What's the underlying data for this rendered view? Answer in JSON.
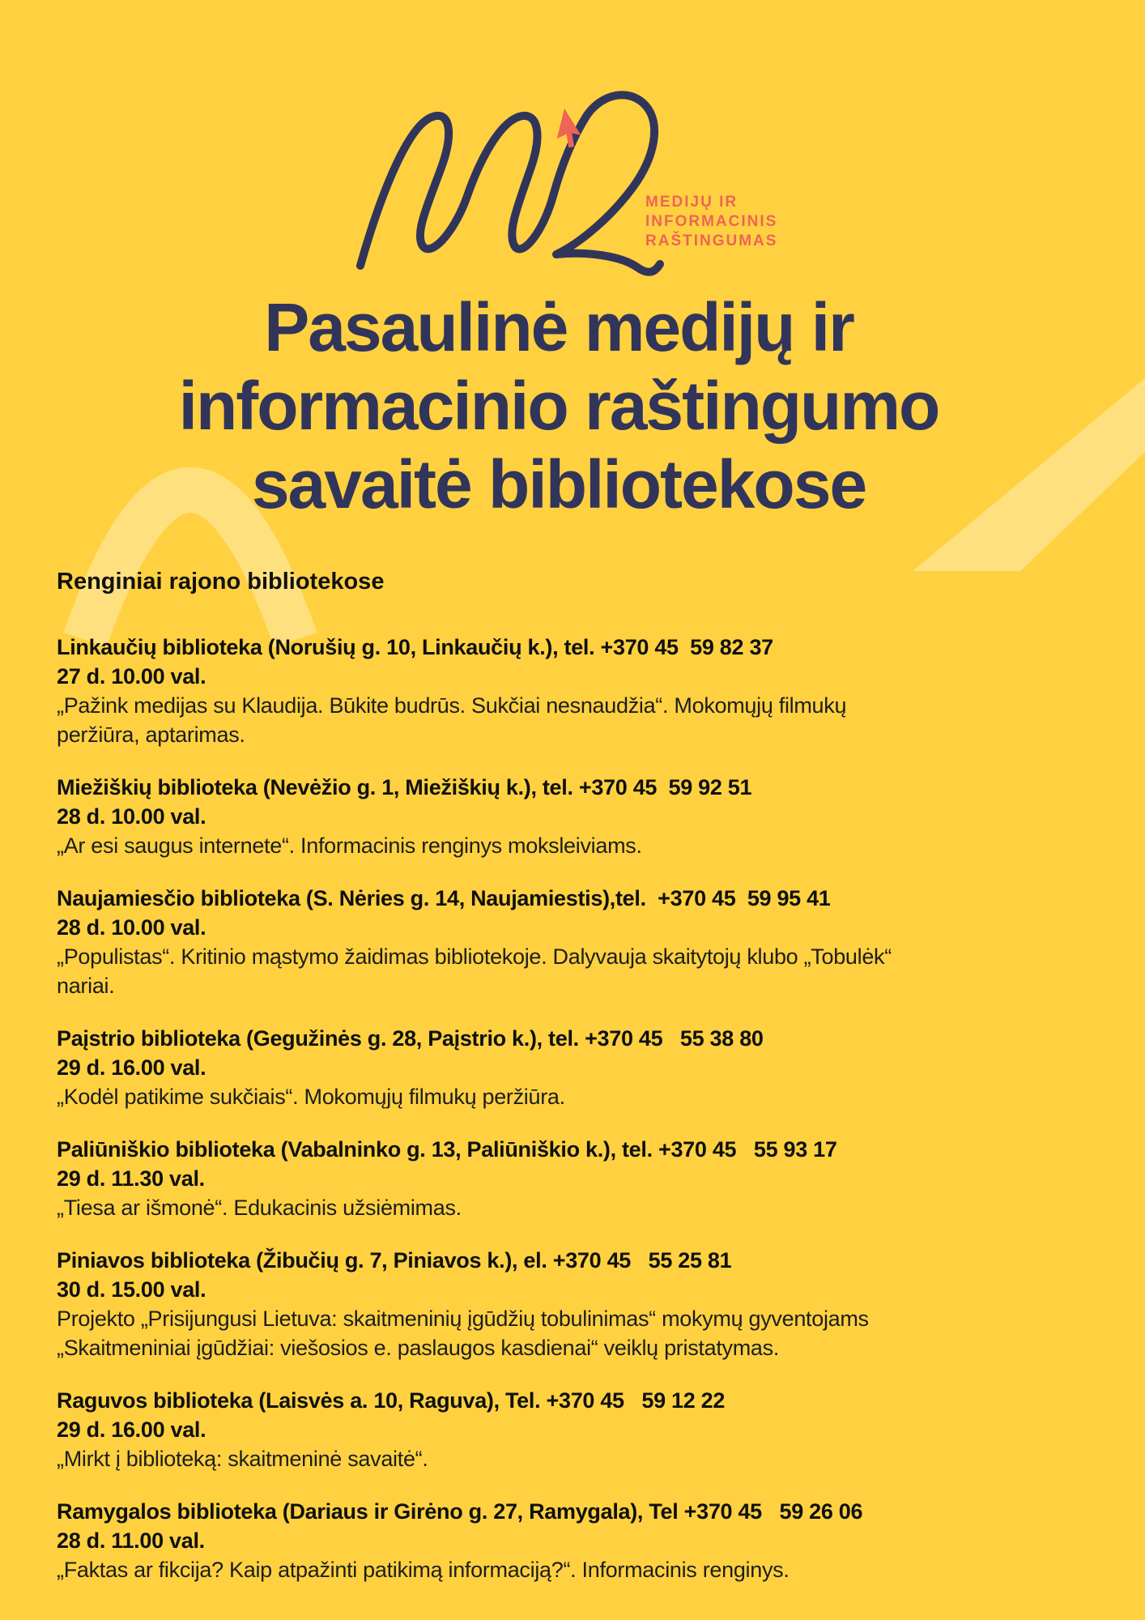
{
  "page": {
    "background_color": "#ffd140",
    "accent_navy": "#32355a",
    "accent_coral": "#ee6455",
    "swoosh_color": "rgba(255,255,255,0.33)"
  },
  "logo": {
    "monogram": "MR",
    "brand_lines": [
      "MEDIJŲ IR",
      "INFORMACINIS",
      "RAŠTINGUMAS"
    ]
  },
  "title": {
    "lines": [
      "Pasaulinė medijų ir",
      "informacinio raštingumo",
      "savaitė bibliotekose"
    ]
  },
  "section": {
    "heading": "Renginiai rajono bibliotekose"
  },
  "events": [
    {
      "bold_lines": [
        "Linkaučių biblioteka (Norušių g. 10, Linkaučių k.), tel. +370 45  59 82 37",
        "27 d. 10.00 val."
      ],
      "text_lines": [
        "„Pažink medijas su Klaudija. Būkite budrūs. Sukčiai nesnaudžia“. Mokomųjų filmukų",
        "peržiūra, aptarimas."
      ]
    },
    {
      "bold_lines": [
        "Miežiškių biblioteka (Nevėžio g. 1, Miežiškių k.), tel. +370 45  59 92 51",
        "28 d. 10.00 val."
      ],
      "text_lines": [
        "„Ar esi saugus internete“. Informacinis renginys moksleiviams."
      ]
    },
    {
      "bold_lines": [
        "Naujamiesčio biblioteka (S. Nėries g. 14, Naujamiestis),tel.  +370 45  59 95 41",
        "28 d. 10.00 val."
      ],
      "text_lines": [
        "„Populistas“. Kritinio mąstymo žaidimas bibliotekoje. Dalyvauja skaitytojų klubo „Tobulėk“",
        "nariai."
      ]
    },
    {
      "bold_lines": [
        "Paįstrio biblioteka (Gegužinės g. 28, Paįstrio k.), tel. +370 45   55 38 80",
        "29 d. 16.00 val."
      ],
      "text_lines": [
        "„Kodėl patikime sukčiais“. Mokomųjų filmukų peržiūra."
      ]
    },
    {
      "bold_lines": [
        "Paliūniškio biblioteka (Vabalninko g. 13, Paliūniškio k.), tel. +370 45   55 93 17",
        "29 d. 11.30 val."
      ],
      "text_lines": [
        "„Tiesa ar išmonė“. Edukacinis užsiėmimas."
      ]
    },
    {
      "bold_lines": [
        "Piniavos biblioteka (Žibučių g. 7, Piniavos k.), el. +370 45   55 25 81",
        "30 d. 15.00 val."
      ],
      "text_lines": [
        "Projekto „Prisijungusi Lietuva: skaitmeninių įgūdžių tobulinimas“ mokymų gyventojams",
        "„Skaitmeniniai įgūdžiai: viešosios e. paslaugos kasdienai“ veiklų pristatymas."
      ]
    },
    {
      "bold_lines": [
        "Raguvos biblioteka (Laisvės a. 10, Raguva), Tel. +370 45   59 12 22",
        "29 d. 16.00 val."
      ],
      "text_lines": [
        "„Mirkt į biblioteką: skaitmeninė savaitė“."
      ]
    },
    {
      "bold_lines": [
        "Ramygalos biblioteka (Dariaus ir Girėno g. 27, Ramygala), Tel +370 45   59 26 06",
        "28 d. 11.00 val."
      ],
      "text_lines": [
        "„Faktas ar fikcija? Kaip atpažinti patikimą informaciją?“. Informacinis renginys."
      ]
    }
  ]
}
